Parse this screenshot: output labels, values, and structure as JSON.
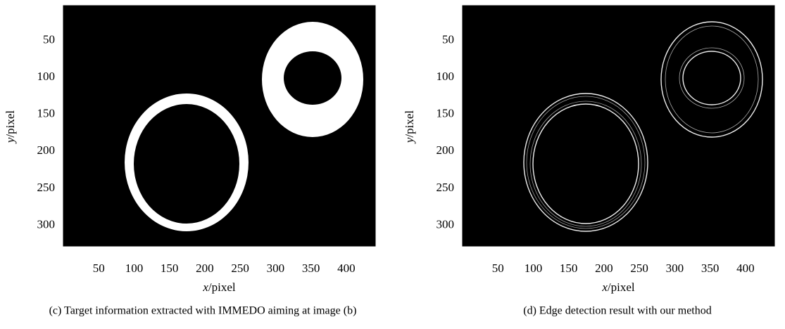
{
  "panels": [
    {
      "type": "image",
      "caption": "(c) Target information extracted with IMMEDO aiming at image (b)",
      "x_label": {
        "var": "x",
        "unit": "/pixel"
      },
      "y_label": {
        "var": "y",
        "unit": "/pixel"
      },
      "xlim": [
        0,
        441
      ],
      "ylim": [
        3,
        328
      ],
      "xticks": [
        50,
        100,
        150,
        200,
        250,
        300,
        350,
        400
      ],
      "yticks": [
        50,
        100,
        150,
        200,
        250,
        300
      ]
    },
    {
      "type": "image",
      "caption": "(d) Edge detection result with our method",
      "x_label": {
        "var": "x",
        "unit": "/pixel"
      },
      "y_label": {
        "var": "y",
        "unit": "/pixel"
      },
      "xlim": [
        0,
        441
      ],
      "ylim": [
        3,
        328
      ],
      "xticks": [
        50,
        100,
        150,
        200,
        250,
        300,
        350,
        400
      ],
      "yticks": [
        50,
        100,
        150,
        200,
        250,
        300
      ]
    }
  ]
}
